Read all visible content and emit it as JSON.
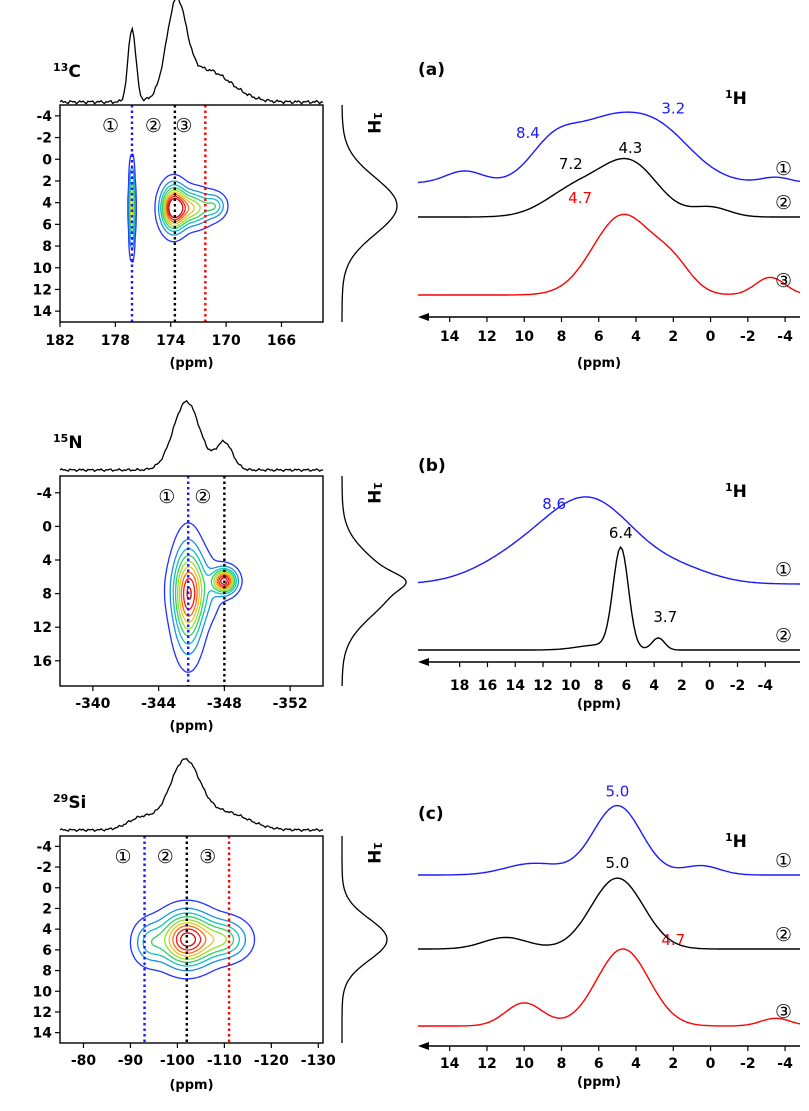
{
  "chart_data": [
    {
      "type": "contour",
      "nucleus_label": "13C",
      "side_nucleus_label": "1H",
      "xlabel": "(ppm)",
      "xlim": [
        182,
        163
      ],
      "ylim": [
        -5,
        15
      ],
      "x_ticks": [
        182,
        178,
        174,
        170,
        166
      ],
      "y_ticks": [
        -4,
        -2,
        0,
        2,
        4,
        6,
        8,
        10,
        12,
        14
      ],
      "slices": [
        {
          "id": "①",
          "x": 176.8,
          "color": "#1a1aff"
        },
        {
          "id": "②",
          "x": 173.7,
          "color": "#000000"
        },
        {
          "id": "③",
          "x": 171.5,
          "color": "#ff0000"
        }
      ],
      "peaks": [
        {
          "x": 176.8,
          "y": 4.5,
          "sx": 0.12,
          "sy": 2.3,
          "amp": 0.75
        },
        {
          "x": 173.8,
          "y": 4.5,
          "sx": 0.55,
          "sy": 1.3,
          "amp": 1.0
        },
        {
          "x": 172.5,
          "y": 4.5,
          "sx": 0.9,
          "sy": 1.0,
          "amp": 0.6
        },
        {
          "x": 170.8,
          "y": 4.3,
          "sx": 0.5,
          "sy": 0.7,
          "amp": 0.3
        }
      ],
      "top_projection_peaks": [
        {
          "x": 176.8,
          "h": 0.8,
          "w": 0.28
        },
        {
          "x": 173.6,
          "h": 0.95,
          "w": 0.7
        },
        {
          "x": 171.5,
          "h": 0.35,
          "w": 1.8
        }
      ],
      "side_projection_peaks": [
        {
          "y": 4.3,
          "h": 1.0,
          "w": 2.6
        }
      ]
    },
    {
      "type": "contour",
      "nucleus_label": "15N",
      "side_nucleus_label": "1H",
      "xlabel": "(ppm)",
      "xlim": [
        -338,
        -354
      ],
      "ylim": [
        -6,
        19
      ],
      "x_ticks": [
        -340,
        -344,
        -348,
        -352
      ],
      "y_ticks": [
        -4,
        0,
        4,
        8,
        12,
        16
      ],
      "slices": [
        {
          "id": "①",
          "x": -345.8,
          "color": "#1a1aff"
        },
        {
          "id": "②",
          "x": -348.0,
          "color": "#000000"
        }
      ],
      "peaks": [
        {
          "x": -345.8,
          "y": 8.5,
          "sx": 0.55,
          "sy": 4.0,
          "amp": 0.7
        },
        {
          "x": -346.2,
          "y": 7.5,
          "sx": 0.9,
          "sy": 2.5,
          "amp": 0.3
        },
        {
          "x": -348.0,
          "y": 6.5,
          "sx": 0.45,
          "sy": 0.9,
          "amp": 1.0
        }
      ],
      "top_projection_peaks": [
        {
          "x": -345.7,
          "h": 0.95,
          "w": 0.8
        },
        {
          "x": -348.0,
          "h": 0.38,
          "w": 0.5
        }
      ],
      "side_projection_peaks": [
        {
          "y": 7.2,
          "h": 1.0,
          "w": 3.4
        },
        {
          "y": 6.5,
          "h": 0.3,
          "w": 0.9
        }
      ]
    },
    {
      "type": "contour",
      "nucleus_label": "29Si",
      "side_nucleus_label": "1H",
      "xlabel": "(ppm)",
      "xlim": [
        -75,
        -131
      ],
      "ylim": [
        -5,
        15
      ],
      "x_ticks": [
        -80,
        -90,
        -100,
        -110,
        -120,
        -130
      ],
      "y_ticks": [
        -4,
        -2,
        0,
        2,
        4,
        6,
        8,
        10,
        12,
        14
      ],
      "slices": [
        {
          "id": "①",
          "x": -93.0,
          "color": "#1a1aff"
        },
        {
          "id": "②",
          "x": -102.0,
          "color": "#000000"
        },
        {
          "id": "③",
          "x": -111.0,
          "color": "#ff0000"
        }
      ],
      "peaks": [
        {
          "x": -102.0,
          "y": 5.0,
          "sx": 3.5,
          "sy": 1.6,
          "amp": 1.0
        },
        {
          "x": -110.0,
          "y": 5.0,
          "sx": 3.2,
          "sy": 1.2,
          "amp": 0.45
        },
        {
          "x": -94.0,
          "y": 5.3,
          "sx": 2.2,
          "sy": 1.3,
          "amp": 0.3
        }
      ],
      "top_projection_peaks": [
        {
          "x": -101.5,
          "h": 0.95,
          "w": 3.2
        },
        {
          "x": -110.0,
          "h": 0.25,
          "w": 5.0
        },
        {
          "x": -92.5,
          "h": 0.18,
          "w": 3.0
        }
      ],
      "side_projection_peaks": [
        {
          "y": 5.0,
          "h": 1.0,
          "w": 2.0
        }
      ]
    }
  ],
  "slices_1h": [
    {
      "type": "line",
      "panel_label": "(a)",
      "nucleus_label": "1H",
      "xlabel": "(ppm)",
      "xlim": [
        15.7,
        -4.8
      ],
      "x_ticks": [
        14,
        12,
        10,
        8,
        6,
        4,
        2,
        0,
        -2,
        -4
      ],
      "traces": [
        {
          "id": "③",
          "color": "#ff0000",
          "offset": 2.0,
          "scale": 1.0,
          "peaks": [
            {
              "x": 4.7,
              "h": 1.0,
              "w": 1.6
            },
            {
              "x": 2.0,
              "h": 0.3,
              "w": 1.0
            },
            {
              "x": -3.2,
              "h": 0.22,
              "w": 0.8
            }
          ],
          "labels": [
            {
              "text": "4.7",
              "x": 7.0,
              "dy": 1.15,
              "color": "#ff0000"
            }
          ]
        },
        {
          "id": "②",
          "color": "#000000",
          "offset": 1.0,
          "scale": 1.0,
          "peaks": [
            {
              "x": 4.3,
              "h": 0.65,
              "w": 1.5
            },
            {
              "x": 7.2,
              "h": 0.35,
              "w": 1.6
            },
            {
              "x": 0.0,
              "h": 0.12,
              "w": 1.0
            }
          ],
          "labels": [
            {
              "text": "4.3",
              "x": 4.3,
              "dy": 0.8,
              "color": "#000000"
            },
            {
              "text": "7.2",
              "x": 7.5,
              "dy": 0.6,
              "color": "#000000"
            }
          ]
        },
        {
          "id": "①",
          "color": "#1a1aff",
          "offset": 0.0,
          "scale": 1.0,
          "peaks": [
            {
              "x": 3.2,
              "h": 0.75,
              "w": 2.0
            },
            {
              "x": 8.4,
              "h": 0.5,
              "w": 1.3
            },
            {
              "x": 6.0,
              "h": 0.45,
              "w": 1.5
            },
            {
              "x": 13.2,
              "h": 0.15,
              "w": 1.0
            },
            {
              "x": -3.5,
              "h": 0.07,
              "w": 0.8
            }
          ],
          "labels": [
            {
              "text": "3.2",
              "x": 2.0,
              "dy": 0.87,
              "color": "#1a1aff"
            },
            {
              "text": "8.4",
              "x": 9.8,
              "dy": 0.56,
              "color": "#1a1aff"
            }
          ]
        }
      ]
    },
    {
      "type": "line",
      "panel_label": "(b)",
      "nucleus_label": "1H",
      "xlabel": "(ppm)",
      "xlim": [
        21.0,
        -6.5
      ],
      "x_ticks": [
        18,
        16,
        14,
        12,
        10,
        8,
        6,
        4,
        2,
        0,
        -2,
        -4
      ],
      "traces": [
        {
          "id": "②",
          "color": "#000000",
          "offset": 1.0,
          "scale": 1.0,
          "peaks": [
            {
              "x": 6.4,
              "h": 1.0,
              "w": 0.55
            },
            {
              "x": 3.7,
              "h": 0.12,
              "w": 0.45
            },
            {
              "x": 8.0,
              "h": 0.05,
              "w": 1.5
            }
          ],
          "labels": [
            {
              "text": "6.4",
              "x": 6.4,
              "dy": 1.12,
              "color": "#000000"
            },
            {
              "text": "3.7",
              "x": 3.2,
              "dy": 0.28,
              "color": "#000000"
            }
          ]
        },
        {
          "id": "①",
          "color": "#1a1aff",
          "offset": 0.0,
          "scale": 1.0,
          "peaks": [
            {
              "x": 8.6,
              "h": 0.82,
              "w": 3.2
            },
            {
              "x": 14.0,
              "h": 0.22,
              "w": 3.0
            },
            {
              "x": 2.0,
              "h": 0.12,
              "w": 2.5
            }
          ],
          "labels": [
            {
              "text": "8.6",
              "x": 11.2,
              "dy": 0.75,
              "color": "#1a1aff"
            }
          ]
        }
      ]
    },
    {
      "type": "line",
      "panel_label": "(c)",
      "nucleus_label": "1H",
      "xlabel": "(ppm)",
      "xlim": [
        15.7,
        -4.8
      ],
      "x_ticks": [
        14,
        12,
        10,
        8,
        6,
        4,
        2,
        0,
        -2,
        -4
      ],
      "traces": [
        {
          "id": "③",
          "color": "#ff0000",
          "offset": 2.0,
          "scale": 1.0,
          "peaks": [
            {
              "x": 4.7,
              "h": 1.0,
              "w": 1.4
            },
            {
              "x": 10.0,
              "h": 0.3,
              "w": 1.0
            },
            {
              "x": -3.5,
              "h": 0.1,
              "w": 0.8
            }
          ],
          "labels": [
            {
              "text": "4.7",
              "x": 2.0,
              "dy": 1.05,
              "color": "#ff0000"
            }
          ]
        },
        {
          "id": "②",
          "color": "#000000",
          "offset": 1.0,
          "scale": 1.0,
          "peaks": [
            {
              "x": 5.0,
              "h": 0.92,
              "w": 1.4
            },
            {
              "x": 11.0,
              "h": 0.15,
              "w": 1.2
            }
          ],
          "labels": [
            {
              "text": "5.0",
              "x": 5.0,
              "dy": 1.05,
              "color": "#000000"
            }
          ]
        },
        {
          "id": "①",
          "color": "#1a1aff",
          "offset": 0.0,
          "scale": 1.0,
          "peaks": [
            {
              "x": 5.0,
              "h": 0.9,
              "w": 1.3
            },
            {
              "x": 9.5,
              "h": 0.15,
              "w": 1.5
            },
            {
              "x": 0.5,
              "h": 0.12,
              "w": 1.0
            }
          ],
          "labels": [
            {
              "text": "5.0",
              "x": 5.0,
              "dy": 1.02,
              "color": "#1a1aff"
            }
          ]
        }
      ]
    }
  ],
  "contour_palette": [
    "#2030ff",
    "#1890e0",
    "#10c0c0",
    "#30d060",
    "#90e030",
    "#f0c020",
    "#f07010",
    "#ff1010",
    "#c00000"
  ]
}
